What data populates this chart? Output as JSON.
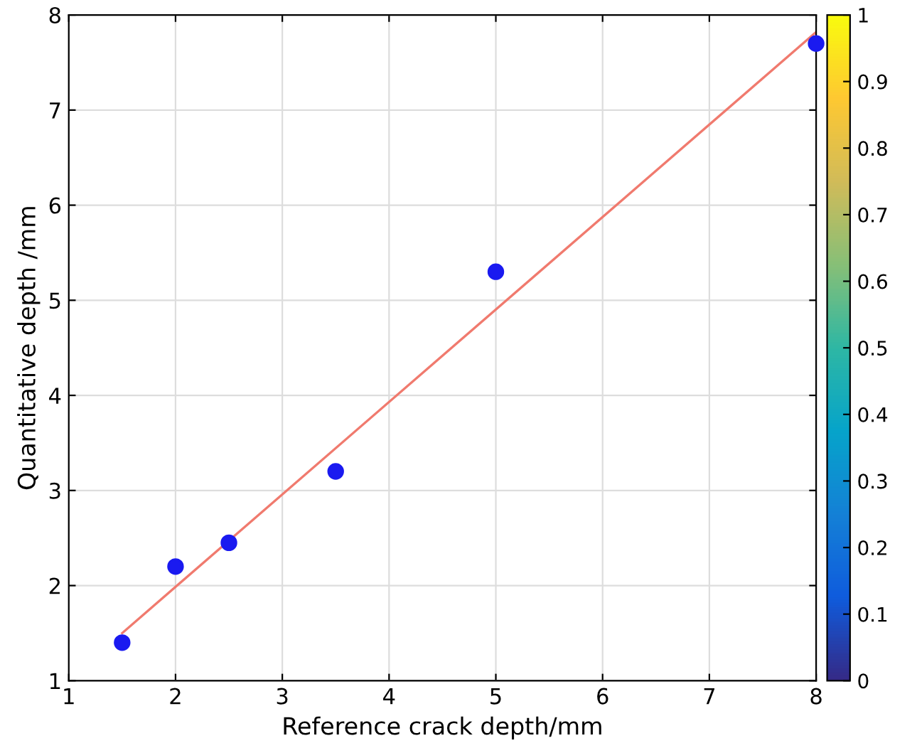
{
  "chart_data": {
    "type": "scatter",
    "xlabel": "Reference crack depth/mm",
    "ylabel": "Quantitative depth /mm",
    "x": [
      1.5,
      2,
      2.5,
      3.5,
      5,
      8
    ],
    "series": [
      {
        "color": "#1a1af0",
        "values": [
          1.4,
          2.2,
          2.45,
          3.2,
          5.3,
          7.7
        ]
      },
      {
        "type": "line",
        "marker": "none",
        "color": "#f07a6e",
        "x": [
          1.5,
          8
        ],
        "values": [
          1.5,
          7.82
        ]
      }
    ],
    "xlim": [
      1,
      8
    ],
    "ylim": [
      1,
      8
    ],
    "xticks": [
      1,
      2,
      3,
      4,
      5,
      6,
      7,
      8
    ],
    "yticks": [
      1,
      2,
      3,
      4,
      5,
      6,
      7,
      8
    ],
    "grid": true,
    "marker": "circle",
    "line_style": "solid",
    "clim": [
      0,
      1
    ],
    "cticks": [
      0,
      0.1,
      0.2,
      0.3,
      0.4,
      0.5,
      0.6,
      0.7,
      0.8,
      0.9,
      1
    ]
  }
}
